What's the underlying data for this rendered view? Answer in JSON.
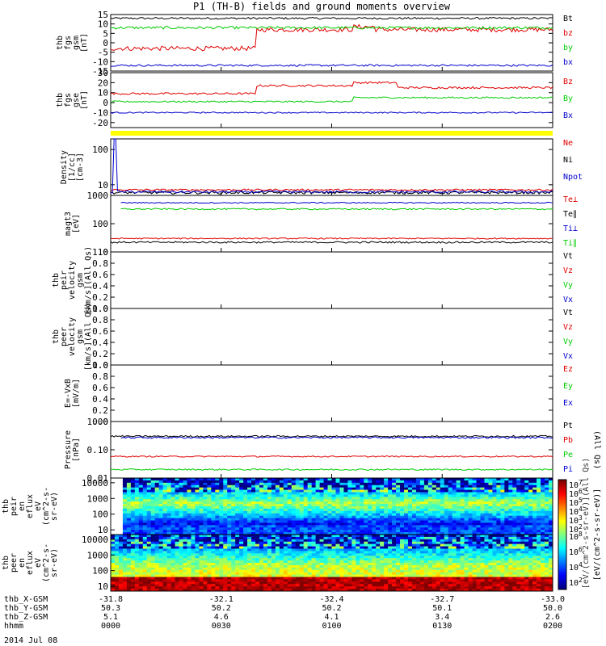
{
  "page": {
    "title": "P1 (TH-B) fields and ground moments overview",
    "date": "2014 Jul 08"
  },
  "colors": {
    "black": "#000000",
    "red": "#e00000",
    "green": "#00cc00",
    "blue": "#0000cc",
    "yellow": "#ffff00"
  },
  "chart_data": [
    {
      "type": "line",
      "id": "fgs-gsm",
      "ylabel": [
        "thb",
        "fgs",
        "gsm",
        "[nT]"
      ],
      "ylim": [
        -15,
        15
      ],
      "yticks": [
        15,
        10,
        5,
        0,
        -5,
        -10,
        -15
      ],
      "series": [
        {
          "name": "Bt",
          "color": "black",
          "level": 13,
          "noise": 0.5
        },
        {
          "name": "bz",
          "color": "red",
          "level": -3,
          "noise": 1.2,
          "steps": [
            [
              0.33,
              7
            ],
            [
              0.55,
              8.5
            ],
            [
              0.6,
              7
            ]
          ]
        },
        {
          "name": "by",
          "color": "green",
          "level": 8,
          "noise": 0.7
        },
        {
          "name": "bx",
          "color": "blue",
          "level": -12,
          "noise": 0.5
        }
      ]
    },
    {
      "type": "line",
      "id": "fgs-gse",
      "ylabel": [
        "thb",
        "fgs",
        "gse",
        "[nT]"
      ],
      "ylim": [
        -25,
        30
      ],
      "yticks": [
        30,
        20,
        10,
        0,
        -10,
        -20
      ],
      "series": [
        {
          "name": "Bz",
          "color": "red",
          "level": 9,
          "noise": 1.0,
          "steps": [
            [
              0.33,
              17
            ],
            [
              0.55,
              20
            ],
            [
              0.65,
              15
            ]
          ]
        },
        {
          "name": "By",
          "color": "green",
          "level": 1,
          "noise": 0.8,
          "steps": [
            [
              0.55,
              5
            ]
          ]
        },
        {
          "name": "Bx",
          "color": "blue",
          "level": -10,
          "noise": 0.6
        }
      ]
    },
    {
      "type": "line",
      "id": "density",
      "scale": "log",
      "ylabel": [
        "Density",
        "[1/cc]",
        "[cm-3]"
      ],
      "ylim": [
        5,
        200
      ],
      "yticks": [
        100,
        10
      ],
      "series": [
        {
          "name": "Ne",
          "color": "red",
          "level": 7.2,
          "noise": 0.4
        },
        {
          "name": "Ni",
          "color": "black",
          "level": 6.0,
          "noise": 0.5
        },
        {
          "name": "Npot",
          "color": "blue",
          "level": 6.3,
          "noise": 0.5,
          "spike": [
            0.01,
            200
          ]
        }
      ]
    },
    {
      "type": "line",
      "id": "temperature",
      "scale": "log",
      "ylabel": [
        "magt3",
        "[eV]"
      ],
      "ylim": [
        10,
        1000
      ],
      "yticks": [
        1000,
        100,
        10
      ],
      "series": [
        {
          "name": "Te⊥",
          "color": "red",
          "level": 30,
          "noise": 1.5
        },
        {
          "name": "Te∥",
          "color": "black",
          "level": 22,
          "noise": 1.5
        },
        {
          "name": "Ti⊥",
          "color": "blue",
          "level": 550,
          "noise": 25,
          "start": 0.02
        },
        {
          "name": "Ti∥",
          "color": "green",
          "level": 330,
          "noise": 20,
          "start": 0.02
        }
      ]
    },
    {
      "type": "line",
      "id": "peir-velocity",
      "ylabel": [
        "thb",
        "peir",
        "velocity",
        "gsm",
        "[km/s](All Qs)"
      ],
      "ylim": [
        0,
        1
      ],
      "yticks": [
        1.0,
        0.8,
        0.6,
        0.4,
        0.2,
        0.0
      ],
      "series": [
        {
          "name": "Vt",
          "color": "black"
        },
        {
          "name": "Vz",
          "color": "red"
        },
        {
          "name": "Vy",
          "color": "green"
        },
        {
          "name": "Vx",
          "color": "blue"
        }
      ]
    },
    {
      "type": "line",
      "id": "peer-velocity",
      "ylabel": [
        "thb",
        "peer",
        "velocity",
        "gsm",
        "[km/s](All Qs)"
      ],
      "ylim": [
        0,
        1
      ],
      "yticks": [
        1.0,
        0.8,
        0.6,
        0.4,
        0.2,
        0.0
      ],
      "series": [
        {
          "name": "Vt",
          "color": "black"
        },
        {
          "name": "Vz",
          "color": "red"
        },
        {
          "name": "Vy",
          "color": "green"
        },
        {
          "name": "Vx",
          "color": "blue"
        }
      ]
    },
    {
      "type": "line",
      "id": "efield",
      "ylabel": [
        "E=-VxB",
        "[mV/m]"
      ],
      "ylim": [
        0,
        1
      ],
      "yticks": [
        1.0,
        0.8,
        0.6,
        0.4,
        0.2,
        0.0
      ],
      "series": [
        {
          "name": "Ez",
          "color": "red"
        },
        {
          "name": "Ey",
          "color": "green"
        },
        {
          "name": "Ex",
          "color": "blue"
        }
      ]
    },
    {
      "type": "line",
      "id": "pressure",
      "scale": "log",
      "ylabel": [
        "Pressure",
        "[nPa]"
      ],
      "ylim": [
        0.01,
        1.0
      ],
      "yticks": [
        1.0,
        0.1,
        0.01
      ],
      "sidenote": "(All Qs)",
      "series": [
        {
          "name": "Pt",
          "color": "black",
          "level": 0.3,
          "noise": 0.02
        },
        {
          "name": "Pb",
          "color": "red",
          "level": 0.058,
          "noise": 0.003
        },
        {
          "name": "Pe",
          "color": "green",
          "level": 0.02,
          "noise": 0.0012
        },
        {
          "name": "Pi",
          "color": "blue",
          "level": 0.27,
          "noise": 0.018,
          "start": 0.02
        }
      ]
    },
    {
      "type": "heatmap",
      "id": "peir-eflux",
      "ylabel": [
        "thb",
        "peir",
        "en",
        "eflux",
        "eV",
        "(cm^2-s-",
        "sr-eV)"
      ],
      "ylim": [
        5,
        20000
      ],
      "yticks": [
        10000,
        1000,
        100,
        10
      ],
      "gap": [
        0,
        0.026
      ]
    },
    {
      "type": "heatmap",
      "id": "peer-eflux",
      "ylabel": [
        "thb",
        "peer",
        "en",
        "eflux",
        "eV",
        "(cm^2-s-",
        "sr-eV)"
      ],
      "ylim": [
        5,
        20000
      ],
      "yticks": [
        10000,
        1000,
        100,
        10
      ]
    },
    {
      "type": "colorbar",
      "id": "eflux-colorbar",
      "label": "[eV/(cm^2-s-sr-eV)]",
      "overlay_text": "[eV/(cm^2-s-sr-eV)](All Qs)",
      "upper_ticks": [
        "10^7",
        "10^6",
        "10^5",
        "10^4",
        "10^3",
        "10^2"
      ],
      "lower_ticks": [
        "10^8",
        "10^6",
        "10^4",
        "10^2"
      ]
    }
  ],
  "xaxis": {
    "rows": [
      {
        "name": "thb_X-GSM",
        "values": [
          "-31.8",
          "-32.1",
          "-32.4",
          "-32.7",
          "-33.0"
        ]
      },
      {
        "name": "thb_Y-GSM",
        "values": [
          "50.3",
          "50.2",
          "50.2",
          "50.1",
          "50.0"
        ]
      },
      {
        "name": "thb_Z-GSM",
        "values": [
          "5.1",
          "4.6",
          "4.1",
          "3.4",
          "2.6"
        ]
      },
      {
        "name": "hhmm",
        "values": [
          "0000",
          "0030",
          "0100",
          "0130",
          "0200"
        ]
      }
    ]
  }
}
